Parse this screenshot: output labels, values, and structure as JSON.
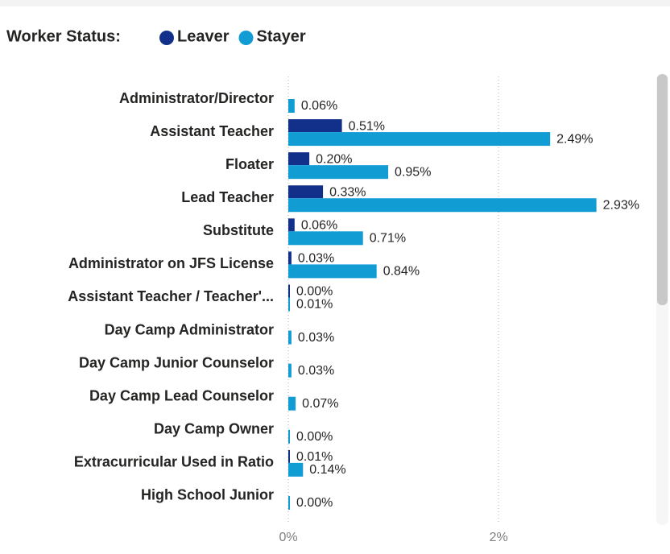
{
  "chart_data": {
    "type": "bar",
    "orientation": "horizontal",
    "legend_title": "Worker Status:",
    "categories": [
      "Administrator/Director",
      "Assistant Teacher",
      "Floater",
      "Lead Teacher",
      "Substitute",
      "Administrator on JFS License",
      "Assistant Teacher / Teacher'...",
      "Day Camp Administrator",
      "Day Camp Junior Counselor",
      "Day Camp Lead Counselor",
      "Day Camp Owner",
      "Extracurricular Used in Ratio",
      "High School Junior"
    ],
    "series": [
      {
        "name": "Leaver",
        "color": "#12308a",
        "values": [
          null,
          0.51,
          0.2,
          0.33,
          0.06,
          0.03,
          0.0,
          null,
          null,
          null,
          null,
          0.01,
          null
        ],
        "value_labels": [
          null,
          "0.51%",
          "0.20%",
          "0.33%",
          "0.06%",
          "0.03%",
          "0.00%",
          null,
          null,
          null,
          null,
          "0.01%",
          null
        ]
      },
      {
        "name": "Stayer",
        "color": "#119cd4",
        "values": [
          0.06,
          2.49,
          0.95,
          2.93,
          0.71,
          0.84,
          0.01,
          0.03,
          0.03,
          0.07,
          0.0,
          0.14,
          0.0
        ],
        "value_labels": [
          "0.06%",
          "2.49%",
          "0.95%",
          "2.93%",
          "0.71%",
          "0.84%",
          "0.01%",
          "0.03%",
          "0.03%",
          "0.07%",
          "0.00%",
          "0.14%",
          "0.00%"
        ]
      }
    ],
    "xlim": [
      0,
      3.4
    ],
    "xticks": [
      {
        "value": 0,
        "label": "0%"
      },
      {
        "value": 2,
        "label": "2%"
      }
    ],
    "grid": true
  }
}
